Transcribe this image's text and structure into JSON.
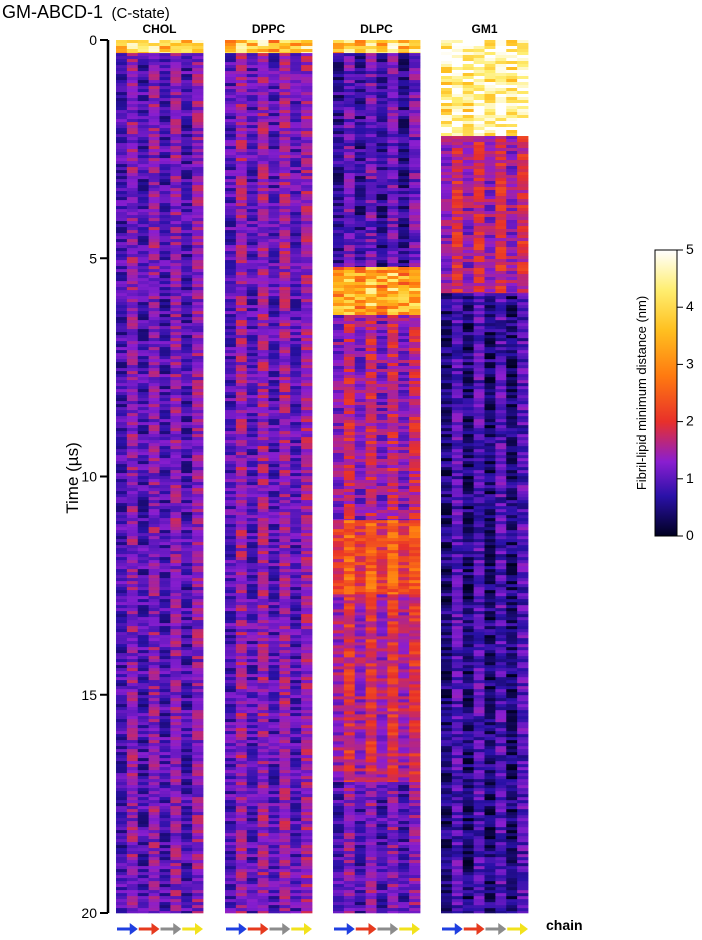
{
  "figure": {
    "title": "GM-ABCD-1",
    "subtitle": "(C-state)"
  },
  "chart_data": {
    "type": "heatmap",
    "ylabel": "Time (µs)",
    "ylim": [
      0,
      20
    ],
    "yticks": [
      0,
      5,
      10,
      15,
      20
    ],
    "y_inverted": true,
    "x_label": "chain",
    "x_order": [
      "chain A",
      "chain B",
      "chain C",
      "chain D"
    ],
    "chain_arrow_colors": [
      "#1f3fe0",
      "#e63a1e",
      "#8c8c8c",
      "#f2e21c"
    ],
    "colorbar": {
      "label": "Fibril-lipid minimum distance (nm)",
      "min": 0,
      "max": 5,
      "ticks": [
        0,
        1,
        2,
        3,
        4,
        5
      ],
      "colormap": "inferno-like",
      "stops": [
        {
          "v": 0,
          "color": "#000020"
        },
        {
          "v": 0.7,
          "color": "#2a11a8"
        },
        {
          "v": 1.3,
          "color": "#8a1ed0"
        },
        {
          "v": 2.0,
          "color": "#e8302a"
        },
        {
          "v": 2.8,
          "color": "#ff7a10"
        },
        {
          "v": 3.6,
          "color": "#ffc020"
        },
        {
          "v": 4.3,
          "color": "#ffee70"
        },
        {
          "v": 5.0,
          "color": "#ffffff"
        }
      ]
    },
    "panels": [
      {
        "name": "CHOL",
        "summary": "Close contact throughout; distances mostly 0.5-1.5 nm",
        "segments": [
          {
            "t_start": 0,
            "t_end": 0.3,
            "mean_nm": 3.8
          },
          {
            "t_start": 0.3,
            "t_end": 20,
            "mean_nm": 1.0
          }
        ]
      },
      {
        "name": "DPPC",
        "summary": "Close contact throughout; distances mostly 0.8-1.5 nm",
        "segments": [
          {
            "t_start": 0,
            "t_end": 0.3,
            "mean_nm": 3.6
          },
          {
            "t_start": 0.3,
            "t_end": 20,
            "mean_nm": 1.1
          }
        ]
      },
      {
        "name": "DLPC",
        "summary": "Intermittent detachment with high distance bands",
        "segments": [
          {
            "t_start": 0,
            "t_end": 0.3,
            "mean_nm": 3.8
          },
          {
            "t_start": 0.3,
            "t_end": 5.2,
            "mean_nm": 0.8
          },
          {
            "t_start": 5.2,
            "t_end": 6.3,
            "mean_nm": 3.3
          },
          {
            "t_start": 6.3,
            "t_end": 11.0,
            "mean_nm": 1.4
          },
          {
            "t_start": 11.0,
            "t_end": 12.7,
            "mean_nm": 2.2
          },
          {
            "t_start": 12.7,
            "t_end": 17.0,
            "mean_nm": 1.6
          },
          {
            "t_start": 17.0,
            "t_end": 20,
            "mean_nm": 1.0
          }
        ]
      },
      {
        "name": "GM1",
        "summary": "Far initially, binds ~2 µs, tight contact after ~5.8 µs",
        "segments": [
          {
            "t_start": 0,
            "t_end": 2.2,
            "mean_nm": 4.5
          },
          {
            "t_start": 2.2,
            "t_end": 5.8,
            "mean_nm": 1.5
          },
          {
            "t_start": 5.8,
            "t_end": 20,
            "mean_nm": 0.6
          }
        ]
      }
    ]
  }
}
